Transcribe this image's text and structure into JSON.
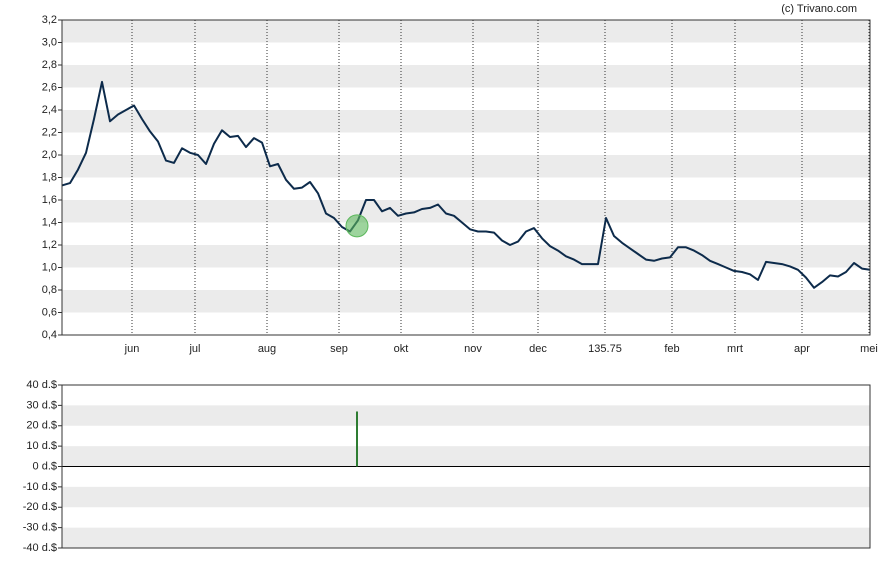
{
  "copyright": "(c) Trivano.com",
  "chart_data": [
    {
      "type": "line",
      "color": "#0d2b4b",
      "x": [
        0,
        2,
        4,
        6,
        8,
        10,
        12,
        14,
        16,
        18,
        20,
        22,
        24,
        26,
        28,
        30,
        32,
        34,
        36,
        38,
        40,
        42,
        44,
        46,
        48,
        50,
        52,
        54,
        56,
        58,
        60,
        62,
        64,
        66,
        68,
        70,
        72,
        74,
        76,
        78,
        80,
        82,
        84,
        86,
        88,
        90,
        92,
        94,
        96,
        98,
        100,
        102,
        104,
        106,
        108,
        110,
        112,
        114,
        116,
        118,
        120,
        122,
        124,
        126,
        128,
        130,
        132,
        134,
        136,
        138,
        140,
        142,
        144,
        146,
        148,
        150,
        152,
        154,
        156,
        158,
        160,
        162,
        164,
        166,
        168,
        170,
        172,
        174,
        176,
        178,
        180,
        182,
        184,
        186,
        188,
        190,
        192,
        194,
        196,
        198,
        200,
        202
      ],
      "values": [
        1.73,
        1.75,
        1.87,
        2.02,
        2.32,
        2.65,
        2.3,
        2.36,
        2.4,
        2.44,
        2.32,
        2.21,
        2.12,
        1.95,
        1.93,
        2.06,
        2.02,
        2.0,
        1.92,
        2.1,
        2.22,
        2.16,
        2.17,
        2.07,
        2.15,
        2.11,
        1.9,
        1.92,
        1.78,
        1.7,
        1.71,
        1.76,
        1.66,
        1.48,
        1.44,
        1.36,
        1.32,
        1.42,
        1.6,
        1.6,
        1.5,
        1.53,
        1.46,
        1.48,
        1.49,
        1.52,
        1.53,
        1.56,
        1.48,
        1.46,
        1.4,
        1.34,
        1.32,
        1.32,
        1.31,
        1.24,
        1.2,
        1.23,
        1.32,
        1.35,
        1.26,
        1.19,
        1.15,
        1.1,
        1.07,
        1.03,
        1.03,
        1.03,
        1.44,
        1.28,
        1.22,
        1.17,
        1.12,
        1.07,
        1.06,
        1.08,
        1.09,
        1.18,
        1.18,
        1.15,
        1.11,
        1.06,
        1.03,
        1.0,
        0.97,
        0.96,
        0.94,
        0.89,
        1.05,
        1.04,
        1.03,
        1.01,
        0.98,
        0.91,
        0.82,
        0.87,
        0.93,
        0.92,
        0.96,
        1.04,
        0.99,
        0.98
      ],
      "marker": {
        "x": 73.75,
        "value": 1.37,
        "color": "#5cb85c"
      },
      "xlim": [
        0,
        202
      ],
      "xticks": [
        {
          "value": 17.5,
          "label": "jun"
        },
        {
          "value": 33.25,
          "label": "jul"
        },
        {
          "value": 51.25,
          "label": "aug"
        },
        {
          "value": 69.25,
          "label": "sep"
        },
        {
          "value": 84.75,
          "label": "okt"
        },
        {
          "value": 102.75,
          "label": "nov"
        },
        {
          "value": 119,
          "label": "dec"
        },
        135.75,
        {
          "value": 152.5,
          "label": "feb"
        },
        {
          "value": 168.25,
          "label": "mrt"
        },
        {
          "value": 185,
          "label": "apr"
        },
        {
          "value": 201.75,
          "label": "mei"
        }
      ],
      "ylim": [
        0.4,
        3.2
      ],
      "yticks": [
        {
          "value": 0.4,
          "label": "0,4"
        },
        {
          "value": 0.6,
          "label": "0,6"
        },
        {
          "value": 0.8,
          "label": "0,8"
        },
        {
          "value": 1.0,
          "label": "1,0"
        },
        {
          "value": 1.2,
          "label": "1,2"
        },
        {
          "value": 1.4,
          "label": "1,4"
        },
        {
          "value": 1.6,
          "label": "1,6"
        },
        {
          "value": 1.8,
          "label": "1,8"
        },
        {
          "value": 2.0,
          "label": "2,0"
        },
        {
          "value": 2.2,
          "label": "2,2"
        },
        {
          "value": 2.4,
          "label": "2,4"
        },
        {
          "value": 2.6,
          "label": "2,6"
        },
        {
          "value": 2.8,
          "label": "2,8"
        },
        {
          "value": 3.0,
          "label": "3,0"
        },
        {
          "value": 3.2,
          "label": "3,2"
        }
      ],
      "grid": true
    },
    {
      "type": "bar",
      "color": "#2e7d32",
      "x": [
        73.75
      ],
      "values": [
        27
      ],
      "xlim": [
        0,
        202
      ],
      "ylim": [
        -40,
        40
      ],
      "yticks": [
        {
          "value": -40,
          "label": "-40 d.$"
        },
        {
          "value": -30,
          "label": "-30 d.$"
        },
        {
          "value": -20,
          "label": "-20 d.$"
        },
        {
          "value": -10,
          "label": "-10 d.$"
        },
        {
          "value": 0,
          "label": "0 d.$"
        },
        {
          "value": 10,
          "label": "10 d.$"
        },
        {
          "value": 20,
          "label": "20 d.$"
        },
        {
          "value": 30,
          "label": "30 d.$"
        },
        {
          "value": 40,
          "label": "40 d.$"
        }
      ],
      "grid": true
    }
  ]
}
